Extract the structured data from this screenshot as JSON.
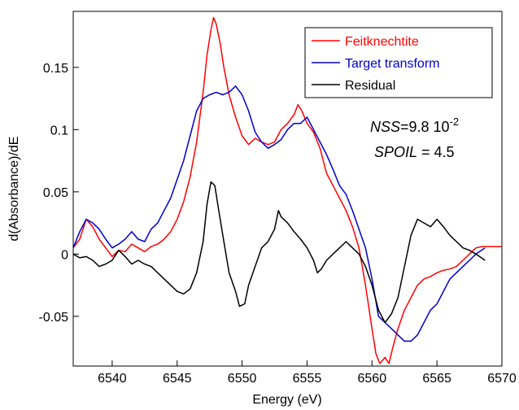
{
  "chart_data": {
    "type": "line",
    "title": "",
    "xlabel": "Energy (eV)",
    "ylabel": "d(Absorbance)/dE",
    "xlim": [
      6537,
      6570
    ],
    "ylim": [
      -0.09,
      0.195
    ],
    "x_ticks": [
      6540,
      6545,
      6550,
      6555,
      6560,
      6565,
      6570
    ],
    "x_tick_labels": [
      "6540",
      "6545",
      "6550",
      "6555",
      "6560",
      "6565",
      "6570"
    ],
    "y_ticks": [
      -0.05,
      0,
      0.05,
      0.1,
      0.15
    ],
    "y_tick_labels": [
      "-0.05",
      "0",
      "0.05",
      "0.1",
      "0.15"
    ],
    "grid": false,
    "legend_position": "top-right",
    "annotations": {
      "nss_label": "NSS",
      "nss_value": "=9.8 10",
      "nss_exp": "-2",
      "spoil_label": "SPOIL",
      "spoil_value": " = 4.5"
    },
    "series": [
      {
        "name": "Feitknechtite",
        "color": "#ff0000",
        "points": [
          [
            6537,
            0.005
          ],
          [
            6537.5,
            0.012
          ],
          [
            6538,
            0.028
          ],
          [
            6538.5,
            0.022
          ],
          [
            6539,
            0.012
          ],
          [
            6539.5,
            0.005
          ],
          [
            6540,
            -0.002
          ],
          [
            6540.5,
            0.003
          ],
          [
            6541,
            0.002
          ],
          [
            6541.5,
            0.008
          ],
          [
            6542,
            0.005
          ],
          [
            6542.5,
            0.002
          ],
          [
            6543,
            0.006
          ],
          [
            6543.5,
            0.008
          ],
          [
            6544,
            0.012
          ],
          [
            6544.5,
            0.018
          ],
          [
            6545,
            0.028
          ],
          [
            6545.5,
            0.042
          ],
          [
            6546,
            0.062
          ],
          [
            6546.5,
            0.09
          ],
          [
            6547,
            0.13
          ],
          [
            6547.3,
            0.16
          ],
          [
            6547.6,
            0.18
          ],
          [
            6547.8,
            0.19
          ],
          [
            6548,
            0.185
          ],
          [
            6548.3,
            0.17
          ],
          [
            6548.6,
            0.15
          ],
          [
            6549,
            0.128
          ],
          [
            6549.5,
            0.11
          ],
          [
            6550,
            0.095
          ],
          [
            6550.5,
            0.088
          ],
          [
            6551,
            0.093
          ],
          [
            6551.5,
            0.09
          ],
          [
            6552,
            0.088
          ],
          [
            6552.5,
            0.09
          ],
          [
            6553,
            0.1
          ],
          [
            6553.5,
            0.105
          ],
          [
            6554,
            0.112
          ],
          [
            6554.3,
            0.12
          ],
          [
            6554.6,
            0.115
          ],
          [
            6555,
            0.105
          ],
          [
            6555.5,
            0.098
          ],
          [
            6556,
            0.085
          ],
          [
            6556.5,
            0.065
          ],
          [
            6557,
            0.055
          ],
          [
            6557.5,
            0.045
          ],
          [
            6558,
            0.035
          ],
          [
            6558.5,
            0.022
          ],
          [
            6559,
            0.005
          ],
          [
            6559.5,
            -0.025
          ],
          [
            6560,
            -0.06
          ],
          [
            6560.3,
            -0.08
          ],
          [
            6560.6,
            -0.088
          ],
          [
            6561,
            -0.083
          ],
          [
            6561.3,
            -0.088
          ],
          [
            6561.6,
            -0.075
          ],
          [
            6562,
            -0.06
          ],
          [
            6562.5,
            -0.045
          ],
          [
            6563,
            -0.035
          ],
          [
            6563.5,
            -0.025
          ],
          [
            6564,
            -0.02
          ],
          [
            6564.5,
            -0.018
          ],
          [
            6565,
            -0.015
          ],
          [
            6565.5,
            -0.013
          ],
          [
            6566,
            -0.012
          ],
          [
            6566.5,
            -0.01
          ],
          [
            6567,
            -0.005
          ],
          [
            6567.5,
            0.0
          ],
          [
            6568,
            0.005
          ],
          [
            6568.5,
            0.006
          ],
          [
            6569,
            0.006
          ],
          [
            6570,
            0.006
          ]
        ]
      },
      {
        "name": "Target transform",
        "color": "#0000cc",
        "points": [
          [
            6537,
            0.005
          ],
          [
            6537.5,
            0.018
          ],
          [
            6538,
            0.028
          ],
          [
            6538.5,
            0.025
          ],
          [
            6539,
            0.02
          ],
          [
            6539.5,
            0.012
          ],
          [
            6540,
            0.005
          ],
          [
            6540.5,
            0.008
          ],
          [
            6541,
            0.012
          ],
          [
            6541.5,
            0.018
          ],
          [
            6542,
            0.012
          ],
          [
            6542.5,
            0.01
          ],
          [
            6543,
            0.02
          ],
          [
            6543.5,
            0.025
          ],
          [
            6544,
            0.035
          ],
          [
            6544.5,
            0.045
          ],
          [
            6545,
            0.06
          ],
          [
            6545.5,
            0.075
          ],
          [
            6546,
            0.095
          ],
          [
            6546.5,
            0.115
          ],
          [
            6547,
            0.125
          ],
          [
            6547.5,
            0.128
          ],
          [
            6548,
            0.13
          ],
          [
            6548.5,
            0.128
          ],
          [
            6549,
            0.13
          ],
          [
            6549.5,
            0.135
          ],
          [
            6550,
            0.128
          ],
          [
            6550.5,
            0.115
          ],
          [
            6551,
            0.098
          ],
          [
            6551.5,
            0.09
          ],
          [
            6552,
            0.085
          ],
          [
            6552.5,
            0.088
          ],
          [
            6553,
            0.092
          ],
          [
            6553.5,
            0.1
          ],
          [
            6554,
            0.105
          ],
          [
            6554.5,
            0.105
          ],
          [
            6555,
            0.11
          ],
          [
            6555.5,
            0.1
          ],
          [
            6556,
            0.09
          ],
          [
            6556.5,
            0.08
          ],
          [
            6557,
            0.068
          ],
          [
            6557.5,
            0.055
          ],
          [
            6558,
            0.048
          ],
          [
            6558.5,
            0.035
          ],
          [
            6559,
            0.02
          ],
          [
            6559.5,
            0.005
          ],
          [
            6560,
            -0.02
          ],
          [
            6560.5,
            -0.05
          ],
          [
            6561,
            -0.055
          ],
          [
            6561.5,
            -0.06
          ],
          [
            6562,
            -0.065
          ],
          [
            6562.5,
            -0.07
          ],
          [
            6563,
            -0.07
          ],
          [
            6563.5,
            -0.065
          ],
          [
            6564,
            -0.055
          ],
          [
            6564.5,
            -0.045
          ],
          [
            6565,
            -0.04
          ],
          [
            6565.5,
            -0.03
          ],
          [
            6566,
            -0.02
          ],
          [
            6566.5,
            -0.015
          ],
          [
            6567,
            -0.01
          ],
          [
            6567.5,
            -0.005
          ],
          [
            6568,
            0.0
          ],
          [
            6568.7,
            0.005
          ]
        ]
      },
      {
        "name": "Residual",
        "color": "#000000",
        "points": [
          [
            6537,
            0.0
          ],
          [
            6537.5,
            -0.003
          ],
          [
            6538,
            -0.002
          ],
          [
            6538.5,
            -0.005
          ],
          [
            6539,
            -0.01
          ],
          [
            6539.5,
            -0.008
          ],
          [
            6540,
            -0.005
          ],
          [
            6540.5,
            0.003
          ],
          [
            6541,
            -0.002
          ],
          [
            6541.5,
            -0.008
          ],
          [
            6542,
            -0.005
          ],
          [
            6542.5,
            -0.008
          ],
          [
            6543,
            -0.01
          ],
          [
            6543.5,
            -0.015
          ],
          [
            6544,
            -0.02
          ],
          [
            6544.5,
            -0.025
          ],
          [
            6545,
            -0.03
          ],
          [
            6545.5,
            -0.032
          ],
          [
            6546,
            -0.028
          ],
          [
            6546.5,
            -0.015
          ],
          [
            6547,
            0.01
          ],
          [
            6547.3,
            0.04
          ],
          [
            6547.6,
            0.058
          ],
          [
            6547.9,
            0.055
          ],
          [
            6548.2,
            0.035
          ],
          [
            6548.6,
            0.01
          ],
          [
            6549,
            -0.015
          ],
          [
            6549.5,
            -0.03
          ],
          [
            6549.8,
            -0.042
          ],
          [
            6550.2,
            -0.04
          ],
          [
            6550.5,
            -0.025
          ],
          [
            6551,
            -0.01
          ],
          [
            6551.5,
            0.005
          ],
          [
            6552,
            0.01
          ],
          [
            6552.5,
            0.02
          ],
          [
            6552.8,
            0.035
          ],
          [
            6553,
            0.03
          ],
          [
            6553.5,
            0.025
          ],
          [
            6554,
            0.018
          ],
          [
            6554.5,
            0.012
          ],
          [
            6555,
            0.005
          ],
          [
            6555.5,
            -0.005
          ],
          [
            6555.8,
            -0.015
          ],
          [
            6556.1,
            -0.012
          ],
          [
            6556.5,
            -0.005
          ],
          [
            6557,
            0.0
          ],
          [
            6557.5,
            0.005
          ],
          [
            6558,
            0.01
          ],
          [
            6558.5,
            0.005
          ],
          [
            6559,
            0.0
          ],
          [
            6559.5,
            -0.01
          ],
          [
            6560,
            -0.025
          ],
          [
            6560.5,
            -0.045
          ],
          [
            6561,
            -0.055
          ],
          [
            6561.5,
            -0.048
          ],
          [
            6562,
            -0.035
          ],
          [
            6562.5,
            -0.01
          ],
          [
            6563,
            0.015
          ],
          [
            6563.5,
            0.028
          ],
          [
            6564,
            0.025
          ],
          [
            6564.5,
            0.022
          ],
          [
            6565,
            0.028
          ],
          [
            6565.5,
            0.022
          ],
          [
            6566,
            0.015
          ],
          [
            6566.5,
            0.01
          ],
          [
            6567,
            0.005
          ],
          [
            6567.5,
            0.003
          ],
          [
            6568,
            0.0
          ],
          [
            6568.7,
            -0.005
          ]
        ]
      }
    ]
  }
}
